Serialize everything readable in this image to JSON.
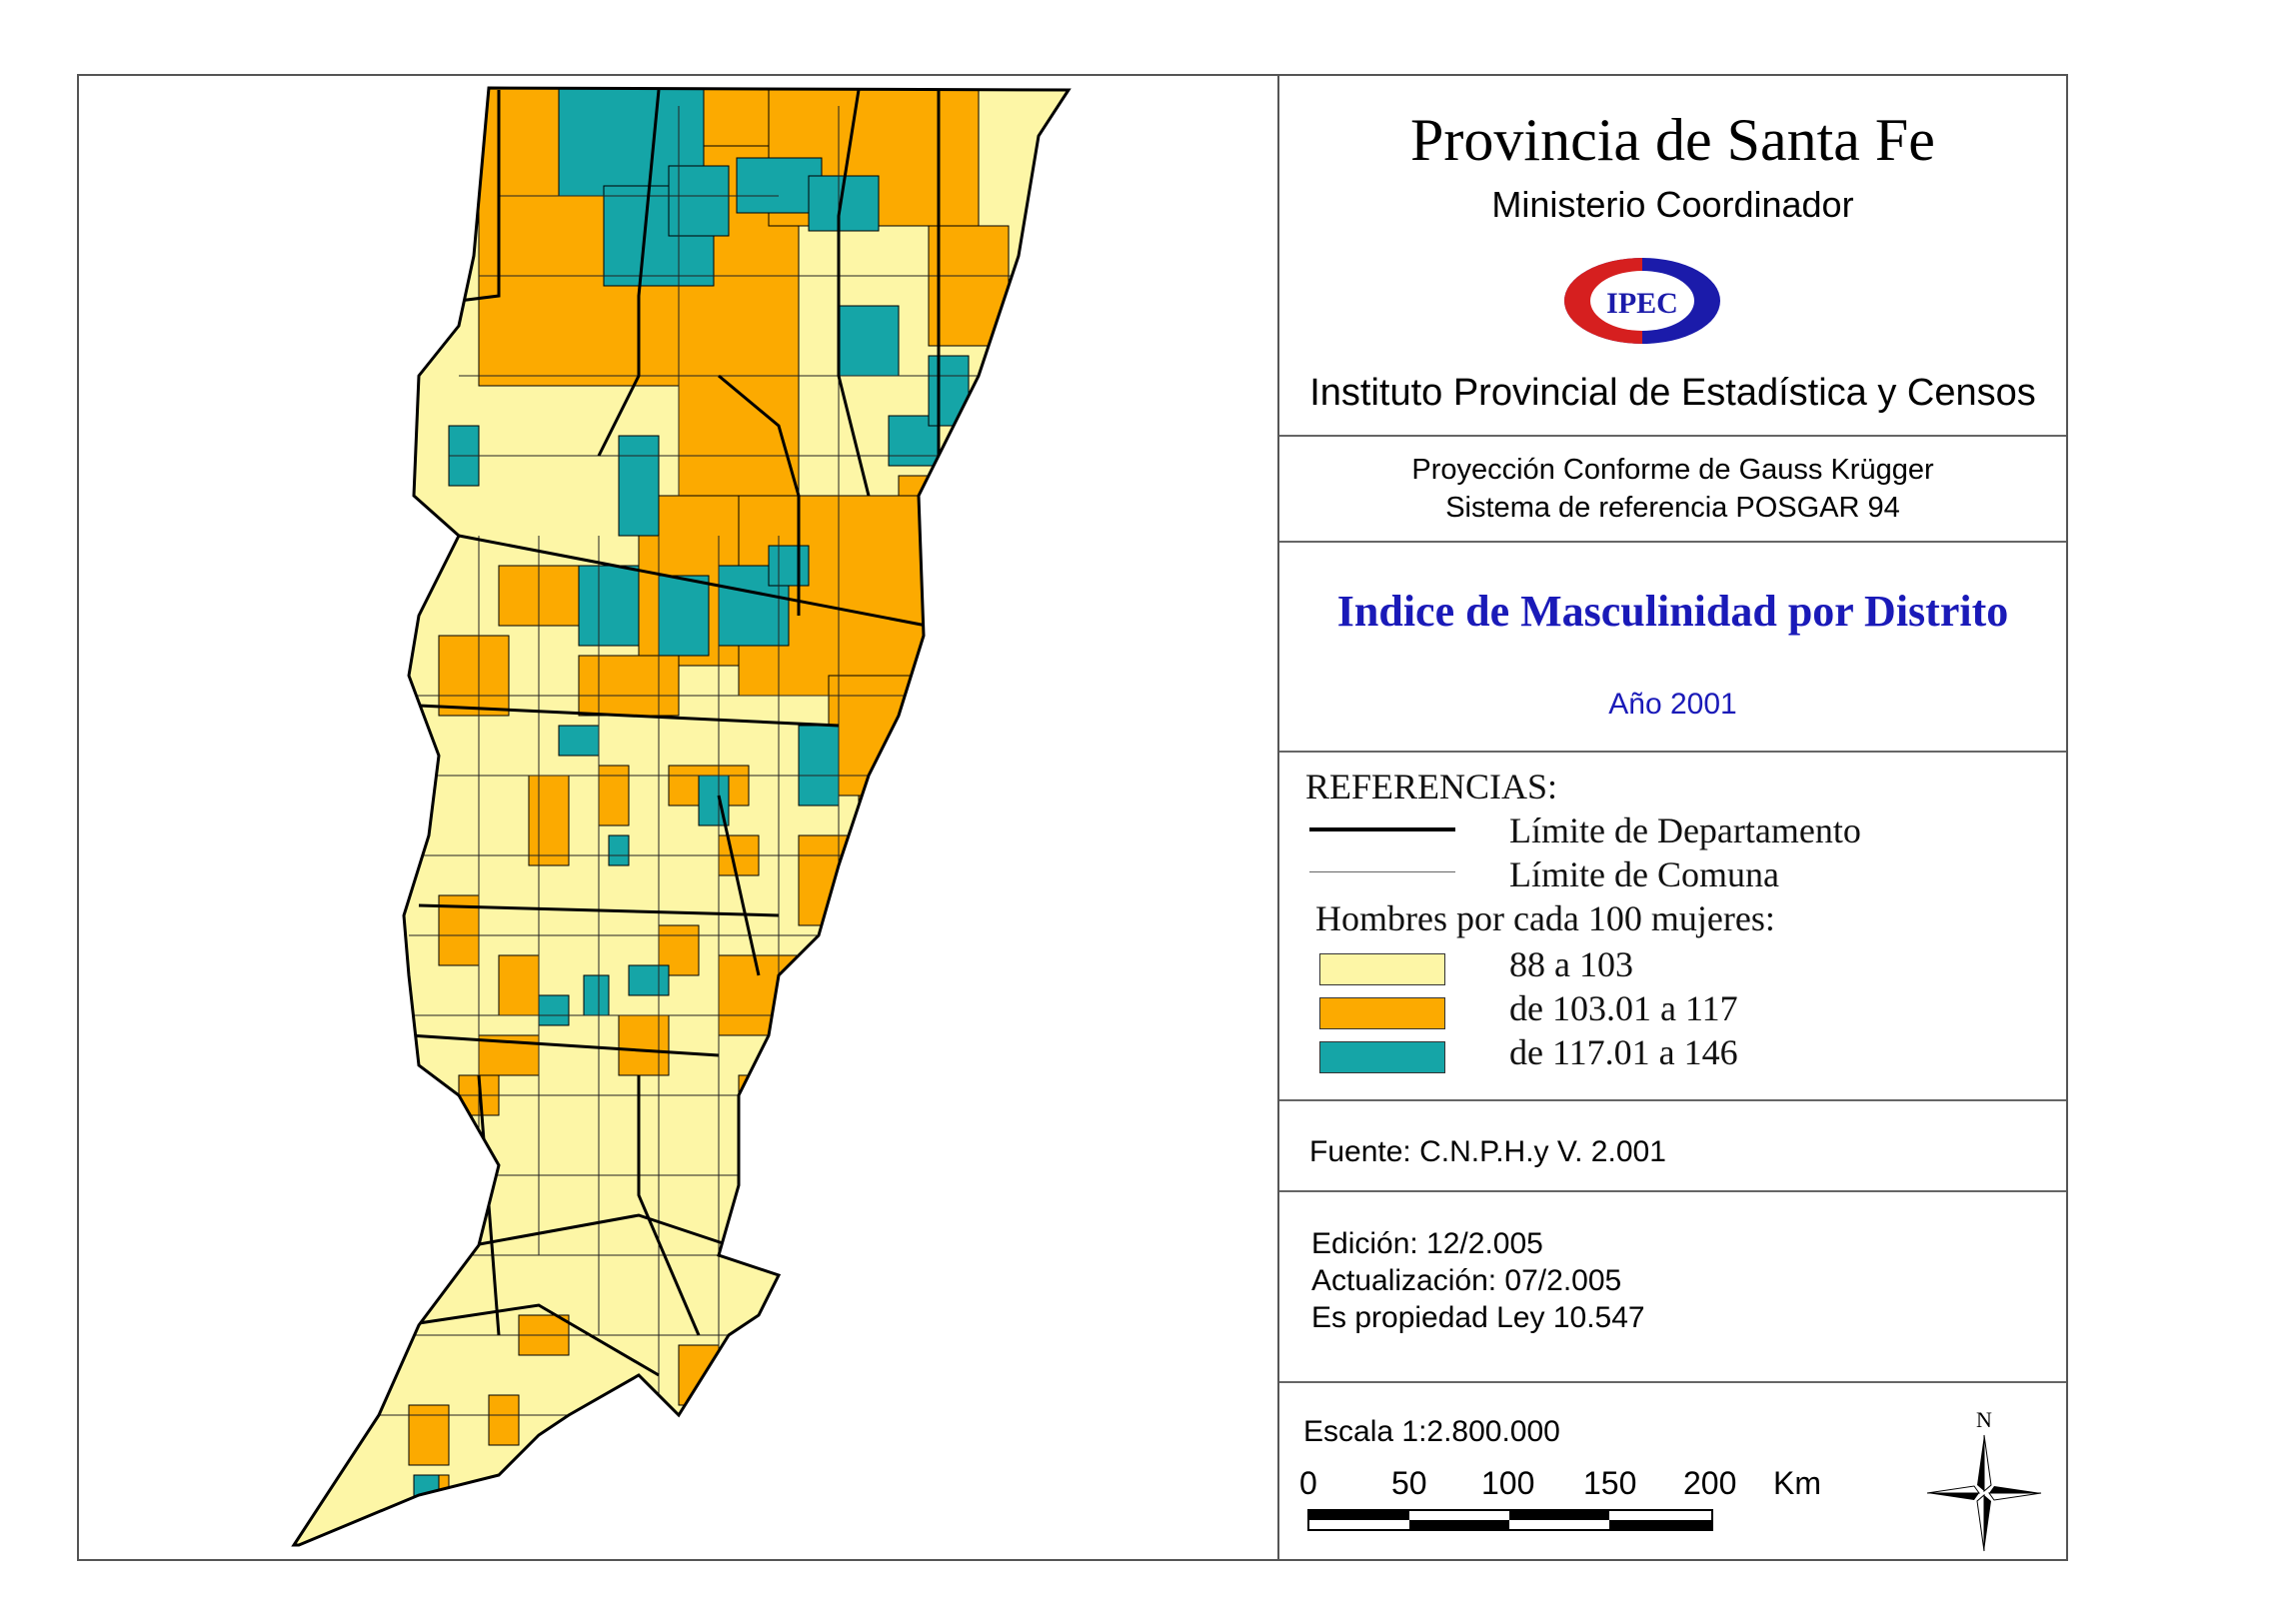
{
  "header": {
    "title": "Provincia de Santa Fe",
    "subtitle": "Ministerio Coordinador",
    "logo_text": "IPEC",
    "institute": "Instituto Provincial de Estadística y Censos"
  },
  "projection": {
    "line1": "Proyección Conforme de Gauss Krügger",
    "line2": "Sistema de referencia POSGAR 94"
  },
  "map_title": "Indice de Masculinidad por Distrito",
  "year": "Año 2001",
  "legend": {
    "title": "REFERENCIAS:",
    "dept_boundary": "Límite de Departamento",
    "comuna_boundary": "Límite de Comuna",
    "classes_title": "Hombres por cada 100 mujeres:",
    "classes": [
      {
        "label": "88 a 103",
        "color": "#fdf6a6"
      },
      {
        "label": "de 103.01 a 117",
        "color": "#fcaa00"
      },
      {
        "label": "de 117.01 a 146",
        "color": "#15a5a7"
      }
    ]
  },
  "source": "Fuente:  C.N.P.H.y V. 2.001",
  "edition": {
    "edicion": "Edición:  12/2.005",
    "actualizacion": "Actualización:  07/2.005",
    "propiedad": "Es propiedad Ley 10.547"
  },
  "scale": {
    "label": "Escala 1:2.800.000",
    "ticks": [
      "0",
      "50",
      "100",
      "150",
      "200"
    ],
    "unit": "Km"
  },
  "north_label": "N",
  "map_colors": {
    "low": "#fdf6a6",
    "mid": "#fcaa00",
    "high": "#15a5a7",
    "boundary": "#000000"
  }
}
